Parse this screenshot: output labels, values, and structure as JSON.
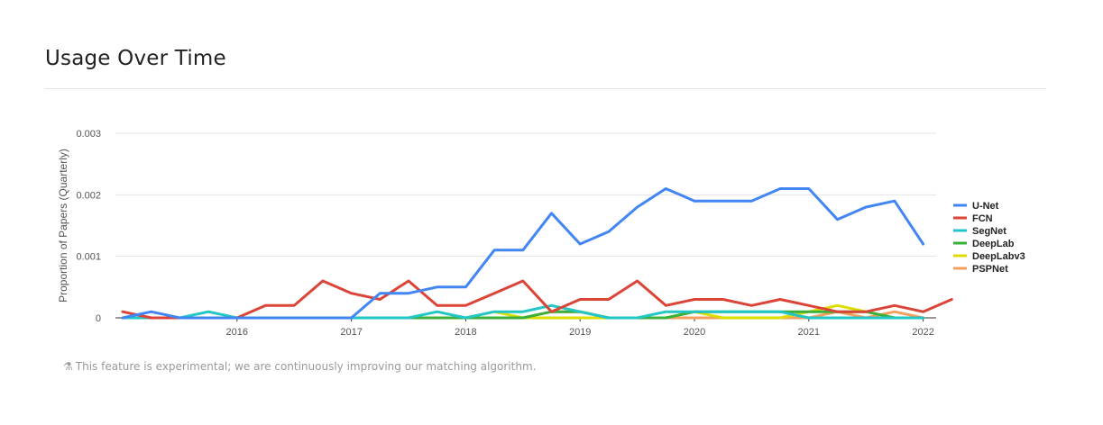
{
  "section": {
    "title": "Usage Over Time"
  },
  "footnote": {
    "icon": "flask-icon",
    "text": "This feature is experimental; we are continuously improving our matching algorithm."
  },
  "chart_data": {
    "type": "line",
    "title": "",
    "xlabel": "",
    "ylabel": "Proportion of Papers (Quarterly)",
    "ylim": [
      0,
      0.003
    ],
    "yticks": [
      0,
      0.001,
      0.002,
      0.003
    ],
    "ytick_labels": [
      "0",
      "0.001",
      "0.002",
      "0.003"
    ],
    "xticks": [
      "2016",
      "2017",
      "2018",
      "2019",
      "2020",
      "2021",
      "2022"
    ],
    "x": [
      "2015-Q1",
      "2015-Q2",
      "2015-Q3",
      "2015-Q4",
      "2016-Q1",
      "2016-Q2",
      "2016-Q3",
      "2016-Q4",
      "2017-Q1",
      "2017-Q2",
      "2017-Q3",
      "2017-Q4",
      "2018-Q1",
      "2018-Q2",
      "2018-Q3",
      "2018-Q4",
      "2019-Q1",
      "2019-Q2",
      "2019-Q3",
      "2019-Q4",
      "2020-Q1",
      "2020-Q2",
      "2020-Q3",
      "2020-Q4",
      "2021-Q1",
      "2021-Q2",
      "2021-Q3",
      "2021-Q4",
      "2022-Q1",
      "2022-Q2"
    ],
    "grid": true,
    "legend_position": "right",
    "series": [
      {
        "name": "U-Net",
        "color": "#4285f4",
        "values": [
          0,
          0.0001,
          0,
          0,
          0,
          0,
          0,
          0,
          0,
          0.0004,
          0.0004,
          0.0005,
          0.0005,
          0.0011,
          0.0011,
          0.0017,
          0.0012,
          0.0014,
          0.0018,
          0.0021,
          0.0019,
          0.0019,
          0.0019,
          0.0021,
          0.0021,
          0.0016,
          0.0018,
          0.0019,
          0.0012,
          null
        ]
      },
      {
        "name": "FCN",
        "color": "#db4437",
        "values": [
          0.0001,
          0,
          0,
          0,
          0,
          0.0002,
          0.0002,
          0.0006,
          0.0004,
          0.0003,
          0.0006,
          0.0002,
          0.0002,
          0.0004,
          0.0006,
          0.0001,
          0.0003,
          0.0003,
          0.0006,
          0.0002,
          0.0003,
          0.0003,
          0.0002,
          0.0003,
          0.0002,
          0.0001,
          0.0001,
          0.0002,
          0.0001,
          0.0003
        ]
      },
      {
        "name": "SegNet",
        "color": "#22c6c6",
        "values": [
          0,
          0,
          0,
          0.0001,
          0,
          0,
          0,
          0,
          0,
          0,
          0,
          0.0001,
          0,
          0.0001,
          0.0001,
          0.0002,
          0.0001,
          0,
          0,
          0.0001,
          0.0001,
          0.0001,
          0.0001,
          0.0001,
          0,
          0,
          0,
          0,
          0,
          null
        ]
      },
      {
        "name": "DeepLab",
        "color": "#3ab03a",
        "values": [
          0,
          0,
          0,
          0,
          0,
          0,
          0,
          0,
          0,
          0,
          0,
          0,
          0,
          0,
          0,
          0.0001,
          0.0001,
          0,
          0,
          0,
          0.0001,
          0.0001,
          0.0001,
          0.0001,
          0.0001,
          0.0001,
          0.0001,
          0,
          0,
          null
        ]
      },
      {
        "name": "DeepLabv3",
        "color": "#dddd00",
        "values": [
          0,
          0,
          0,
          0,
          0,
          0,
          0,
          0,
          0,
          0,
          0,
          0,
          0,
          0.0001,
          0,
          0,
          0,
          0,
          0,
          0,
          0.0001,
          0,
          0,
          0,
          0.0001,
          0.0002,
          0.0001,
          0,
          0,
          null
        ]
      },
      {
        "name": "PSPNet",
        "color": "#f4a05c",
        "values": [
          0,
          0,
          0,
          0,
          0,
          0,
          0,
          0,
          0,
          0,
          0,
          0,
          0,
          0,
          0,
          0.0001,
          0.0001,
          0,
          0,
          0,
          0,
          0,
          0,
          0,
          0,
          0.0001,
          0,
          0.0001,
          0,
          null
        ]
      }
    ]
  }
}
